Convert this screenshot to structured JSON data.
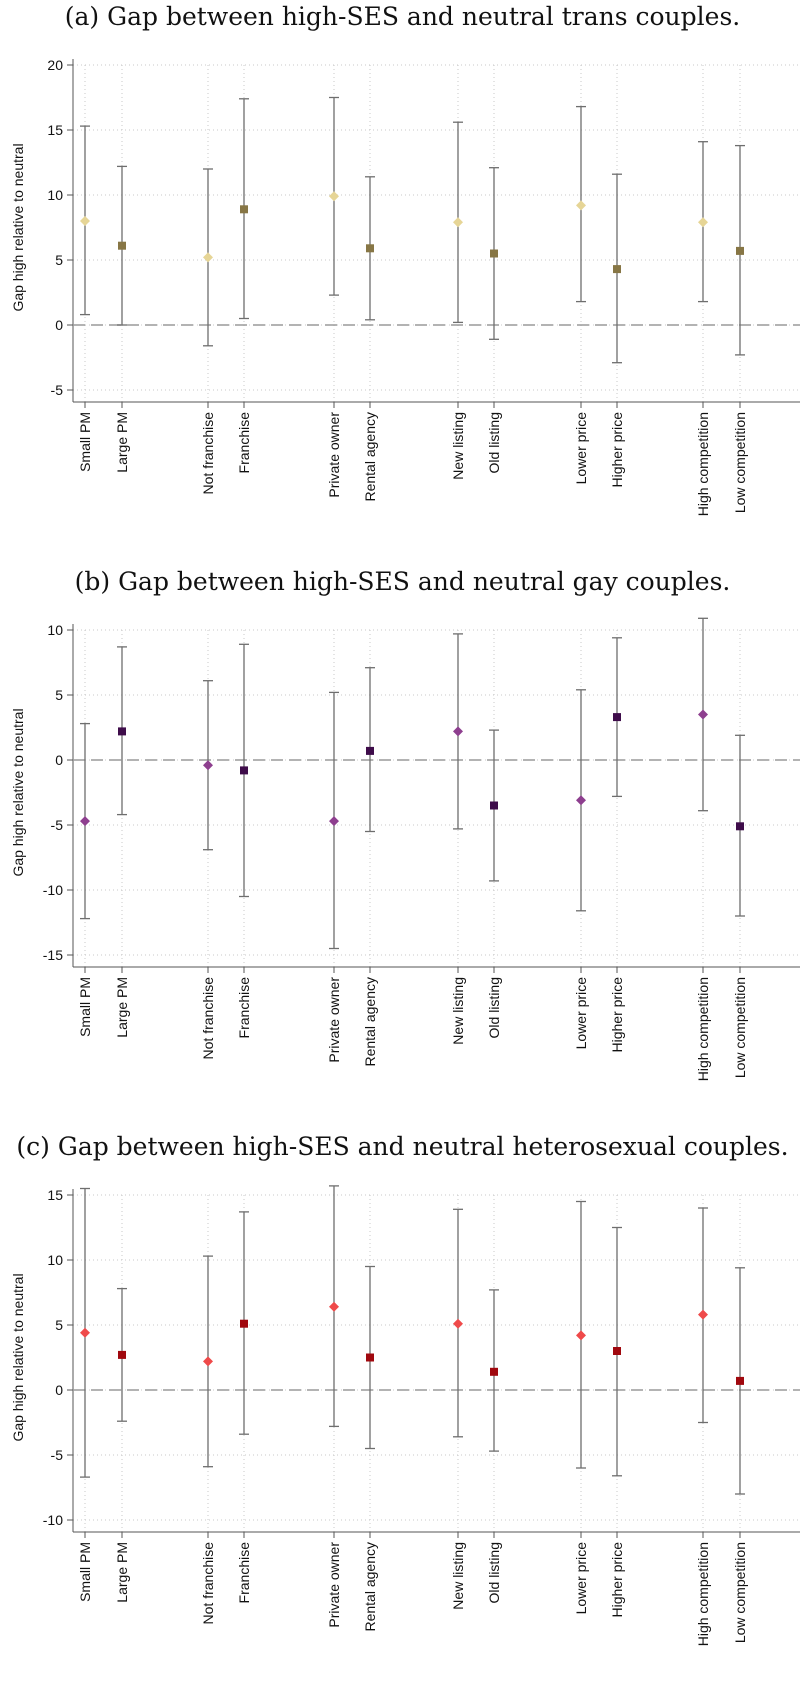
{
  "chart_data": [
    {
      "type": "scatter",
      "title": "(a) Gap between high-SES and neutral trans couples.",
      "ylabel": "Gap high relative to neutral",
      "ylim": [
        -5,
        20
      ],
      "yticks": [
        -5,
        0,
        5,
        10,
        15,
        20
      ],
      "grid": true,
      "reference_line_y": 0,
      "colors": {
        "light": "#e6d596",
        "dark": "#877645"
      },
      "categories": [
        "Small PM",
        "Large PM",
        "Not franchise",
        "Franchise",
        "Private owner",
        "Rental agency",
        "New listing",
        "Old listing",
        "Lower price",
        "Higher price",
        "High competition",
        "Low competition"
      ],
      "markers": [
        "diamond",
        "square",
        "diamond",
        "square",
        "diamond",
        "square",
        "diamond",
        "square",
        "diamond",
        "square",
        "diamond",
        "square"
      ],
      "tones": [
        "light",
        "dark",
        "light",
        "dark",
        "light",
        "dark",
        "light",
        "dark",
        "light",
        "dark",
        "light",
        "dark"
      ],
      "estimate": [
        8.0,
        6.1,
        5.2,
        8.9,
        9.9,
        5.9,
        7.9,
        5.5,
        9.2,
        4.3,
        7.9,
        5.7
      ],
      "ci_low": [
        0.8,
        0.0,
        -1.6,
        0.5,
        2.3,
        0.4,
        0.2,
        -1.1,
        1.8,
        -2.9,
        1.8,
        -2.3
      ],
      "ci_high": [
        15.3,
        12.2,
        12.0,
        17.4,
        17.5,
        11.4,
        15.6,
        12.1,
        16.8,
        11.6,
        14.1,
        13.8
      ]
    },
    {
      "type": "scatter",
      "title": "(b) Gap between high-SES and neutral gay couples.",
      "ylabel": "Gap high relative to neutral",
      "ylim": [
        -15,
        10
      ],
      "yticks": [
        -15,
        -10,
        -5,
        0,
        5,
        10
      ],
      "grid": true,
      "reference_line_y": 0,
      "colors": {
        "light": "#8e3f8f",
        "dark": "#3e0c4a"
      },
      "categories": [
        "Small PM",
        "Large PM",
        "Not franchise",
        "Franchise",
        "Private owner",
        "Rental agency",
        "New listing",
        "Old listing",
        "Lower price",
        "Higher price",
        "High competition",
        "Low competition"
      ],
      "markers": [
        "diamond",
        "square",
        "diamond",
        "square",
        "diamond",
        "square",
        "diamond",
        "square",
        "diamond",
        "square",
        "diamond",
        "square"
      ],
      "tones": [
        "light",
        "dark",
        "light",
        "dark",
        "light",
        "dark",
        "light",
        "dark",
        "light",
        "dark",
        "light",
        "dark"
      ],
      "estimate": [
        -4.7,
        2.2,
        -0.4,
        -0.8,
        -4.7,
        0.7,
        2.2,
        -3.5,
        -3.1,
        3.3,
        3.5,
        -5.1
      ],
      "ci_low": [
        -12.2,
        -4.2,
        -6.9,
        -10.5,
        -14.5,
        -5.5,
        -5.3,
        -9.3,
        -11.6,
        -2.8,
        -3.9,
        -12.0
      ],
      "ci_high": [
        2.8,
        8.7,
        6.1,
        8.9,
        5.2,
        7.1,
        9.7,
        2.3,
        5.4,
        9.4,
        10.9,
        1.9
      ]
    },
    {
      "type": "scatter",
      "title": "(c) Gap between high-SES and neutral heterosexual couples.",
      "ylabel": "Gap high relative to neutral",
      "ylim": [
        -10,
        15
      ],
      "yticks": [
        -10,
        -5,
        0,
        5,
        10,
        15
      ],
      "grid": true,
      "reference_line_y": 0,
      "colors": {
        "light": "#ef4a4a",
        "dark": "#a0080e"
      },
      "categories": [
        "Small PM",
        "Large PM",
        "Not franchise",
        "Franchise",
        "Private owner",
        "Rental agency",
        "New listing",
        "Old listing",
        "Lower price",
        "Higher price",
        "High competition",
        "Low competition"
      ],
      "markers": [
        "diamond",
        "square",
        "diamond",
        "square",
        "diamond",
        "square",
        "diamond",
        "square",
        "diamond",
        "square",
        "diamond",
        "square"
      ],
      "tones": [
        "light",
        "dark",
        "light",
        "dark",
        "light",
        "dark",
        "light",
        "dark",
        "light",
        "dark",
        "light",
        "dark"
      ],
      "estimate": [
        4.4,
        2.7,
        2.2,
        5.1,
        6.4,
        2.5,
        5.1,
        1.4,
        4.2,
        3.0,
        5.8,
        0.7
      ],
      "ci_low": [
        -6.7,
        -2.4,
        -5.9,
        -3.4,
        -2.8,
        -4.5,
        -3.6,
        -4.7,
        -6.0,
        -6.6,
        -2.5,
        -8.0
      ],
      "ci_high": [
        15.5,
        7.8,
        10.3,
        13.7,
        15.7,
        9.5,
        13.9,
        7.7,
        14.5,
        12.5,
        14.0,
        9.4
      ]
    }
  ]
}
